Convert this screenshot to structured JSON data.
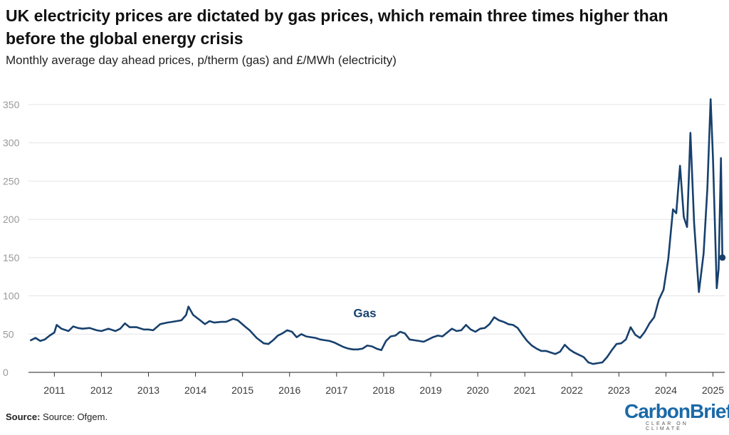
{
  "title": "UK electricity prices are dictated by gas prices, which remain three times higher than before the global energy crisis",
  "subtitle": "Monthly average day ahead prices, p/therm (gas) and £/MWh (electricity)",
  "source_label": "Source:",
  "source_text": "Source: Ofgem.",
  "logo": {
    "main": "CarbonBrief",
    "tagline": "CLEAR ON CLIMATE"
  },
  "colors": {
    "gas": "#17406d",
    "electricity": "#5b9bd5",
    "grid": "#e4e4e4"
  },
  "chart_data": {
    "type": "line",
    "ylim": [
      0,
      375
    ],
    "yticks": [
      0,
      50,
      100,
      150,
      200,
      250,
      300,
      350
    ],
    "xlim": [
      2010.45,
      2025.25
    ],
    "xticks": [
      2011,
      2012,
      2013,
      2014,
      2015,
      2016,
      2017,
      2018,
      2019,
      2020,
      2021,
      2022,
      2023,
      2024,
      2025
    ],
    "grid": true,
    "series": [
      {
        "name": "Gas",
        "color": "#17406d",
        "label_at": [
          2017.6,
          72
        ],
        "points": [
          [
            2010.5,
            42
          ],
          [
            2010.6,
            45
          ],
          [
            2010.7,
            41
          ],
          [
            2010.8,
            43
          ],
          [
            2010.9,
            48
          ],
          [
            2011.0,
            52
          ],
          [
            2011.05,
            62
          ],
          [
            2011.15,
            57
          ],
          [
            2011.3,
            54
          ],
          [
            2011.4,
            60
          ],
          [
            2011.5,
            58
          ],
          [
            2011.6,
            57
          ],
          [
            2011.75,
            58
          ],
          [
            2011.9,
            55
          ],
          [
            2012.0,
            54
          ],
          [
            2012.15,
            57
          ],
          [
            2012.3,
            54
          ],
          [
            2012.4,
            57
          ],
          [
            2012.5,
            64
          ],
          [
            2012.6,
            59
          ],
          [
            2012.75,
            59
          ],
          [
            2012.9,
            56
          ],
          [
            2013.0,
            56
          ],
          [
            2013.1,
            55
          ],
          [
            2013.25,
            63
          ],
          [
            2013.4,
            65
          ],
          [
            2013.5,
            66
          ],
          [
            2013.6,
            67
          ],
          [
            2013.7,
            68
          ],
          [
            2013.8,
            75
          ],
          [
            2013.85,
            86
          ],
          [
            2013.95,
            75
          ],
          [
            2014.1,
            68
          ],
          [
            2014.2,
            63
          ],
          [
            2014.3,
            67
          ],
          [
            2014.4,
            65
          ],
          [
            2014.55,
            66
          ],
          [
            2014.65,
            66
          ],
          [
            2014.8,
            70
          ],
          [
            2014.9,
            68
          ],
          [
            2015.05,
            60
          ],
          [
            2015.15,
            55
          ],
          [
            2015.3,
            45
          ],
          [
            2015.45,
            38
          ],
          [
            2015.55,
            37
          ],
          [
            2015.65,
            42
          ],
          [
            2015.75,
            48
          ],
          [
            2015.85,
            51
          ],
          [
            2015.95,
            55
          ],
          [
            2016.05,
            53
          ],
          [
            2016.15,
            46
          ],
          [
            2016.25,
            50
          ],
          [
            2016.35,
            47
          ],
          [
            2016.45,
            46
          ],
          [
            2016.55,
            45
          ],
          [
            2016.65,
            43
          ],
          [
            2016.75,
            42
          ],
          [
            2016.85,
            41
          ],
          [
            2016.95,
            39
          ],
          [
            2017.05,
            36
          ],
          [
            2017.15,
            33
          ],
          [
            2017.25,
            31
          ],
          [
            2017.35,
            30
          ],
          [
            2017.45,
            30
          ],
          [
            2017.55,
            31
          ],
          [
            2017.65,
            35
          ],
          [
            2017.75,
            34
          ],
          [
            2017.85,
            31
          ],
          [
            2017.95,
            29
          ],
          [
            2018.05,
            41
          ],
          [
            2018.15,
            47
          ],
          [
            2018.25,
            48
          ],
          [
            2018.35,
            53
          ],
          [
            2018.45,
            51
          ],
          [
            2018.55,
            43
          ],
          [
            2018.65,
            42
          ],
          [
            2018.75,
            41
          ],
          [
            2018.85,
            40
          ],
          [
            2018.95,
            43
          ],
          [
            2019.05,
            46
          ],
          [
            2019.15,
            48
          ],
          [
            2019.25,
            47
          ],
          [
            2019.35,
            52
          ],
          [
            2019.45,
            57
          ],
          [
            2019.55,
            54
          ],
          [
            2019.65,
            55
          ],
          [
            2019.75,
            62
          ],
          [
            2019.85,
            56
          ],
          [
            2019.95,
            53
          ],
          [
            2020.05,
            57
          ],
          [
            2020.15,
            58
          ],
          [
            2020.25,
            63
          ],
          [
            2020.35,
            72
          ],
          [
            2020.45,
            68
          ],
          [
            2020.55,
            66
          ],
          [
            2020.65,
            63
          ],
          [
            2020.75,
            62
          ],
          [
            2020.85,
            58
          ],
          [
            2020.95,
            49
          ],
          [
            2021.05,
            41
          ],
          [
            2021.15,
            35
          ],
          [
            2021.25,
            31
          ],
          [
            2021.35,
            28
          ],
          [
            2021.45,
            28
          ],
          [
            2021.55,
            26
          ],
          [
            2021.65,
            24
          ],
          [
            2021.75,
            27
          ],
          [
            2021.85,
            36
          ],
          [
            2021.95,
            30
          ],
          [
            2022.05,
            26
          ],
          [
            2022.15,
            23
          ],
          [
            2022.25,
            20
          ],
          [
            2022.35,
            13
          ],
          [
            2022.45,
            11
          ],
          [
            2022.55,
            12
          ],
          [
            2022.65,
            13
          ],
          [
            2022.75,
            20
          ],
          [
            2022.85,
            29
          ],
          [
            2022.95,
            37
          ],
          [
            2023.05,
            38
          ],
          [
            2023.15,
            43
          ],
          [
            2023.25,
            59
          ],
          [
            2023.35,
            49
          ],
          [
            2023.45,
            45
          ],
          [
            2023.55,
            53
          ],
          [
            2023.65,
            64
          ],
          [
            2023.75,
            72
          ],
          [
            2023.85,
            95
          ],
          [
            2023.95,
            108
          ],
          [
            2024.05,
            148
          ],
          [
            2024.15,
            213
          ],
          [
            2024.22,
            208
          ],
          [
            2024.3,
            270
          ],
          [
            2024.38,
            203
          ],
          [
            2024.45,
            190
          ],
          [
            2024.52,
            313
          ],
          [
            2024.6,
            195
          ],
          [
            2024.7,
            105
          ],
          [
            2024.8,
            155
          ],
          [
            2024.88,
            240
          ],
          [
            2024.95,
            357
          ],
          [
            2025.0,
            280
          ],
          [
            2025.08,
            110
          ],
          [
            2025.12,
            135
          ],
          [
            2025.17,
            280
          ],
          [
            2025.2,
            150
          ]
        ]
      }
    ]
  }
}
